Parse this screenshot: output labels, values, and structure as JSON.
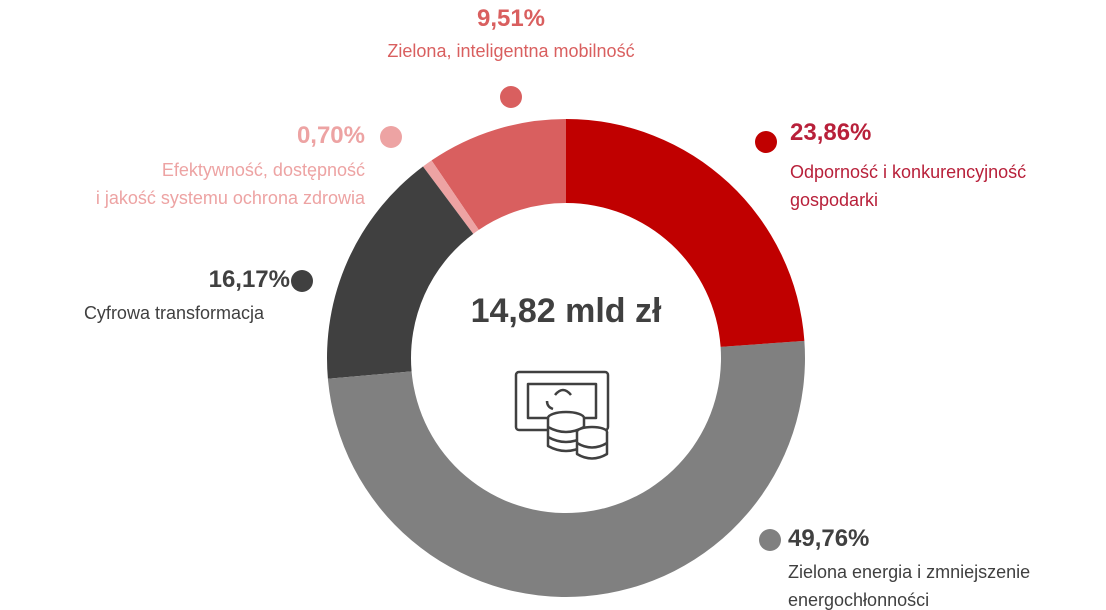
{
  "chart_data": {
    "type": "pie",
    "donut": true,
    "center_label": "14,82 mld zł",
    "categories": [
      "Odporność i konkurencyjność\ngospodarki",
      "Zielona energia i zmniejszenie\nenergochłonności",
      "Cyfrowa transformacja",
      "Efektywność, dostępność\ni jakość systemu ochrona zdrowia",
      "Zielona, inteligentna mobilność"
    ],
    "values": [
      23.86,
      49.76,
      16.17,
      0.7,
      9.51
    ],
    "value_labels": [
      "23,86%",
      "49,76%",
      "16,17%",
      "0,70%",
      "9,51%"
    ],
    "colors": [
      "#c00000",
      "#808080",
      "#404040",
      "#eda3a3",
      "#d95f5f"
    ],
    "label_colors": [
      "#b8203a",
      "#404040",
      "#404040",
      "#eda3a3",
      "#d95f5f"
    ],
    "category_colors": [
      "#b8203a",
      "#404040",
      "#404040",
      "#eda3a3",
      "#d95f5f"
    ]
  }
}
